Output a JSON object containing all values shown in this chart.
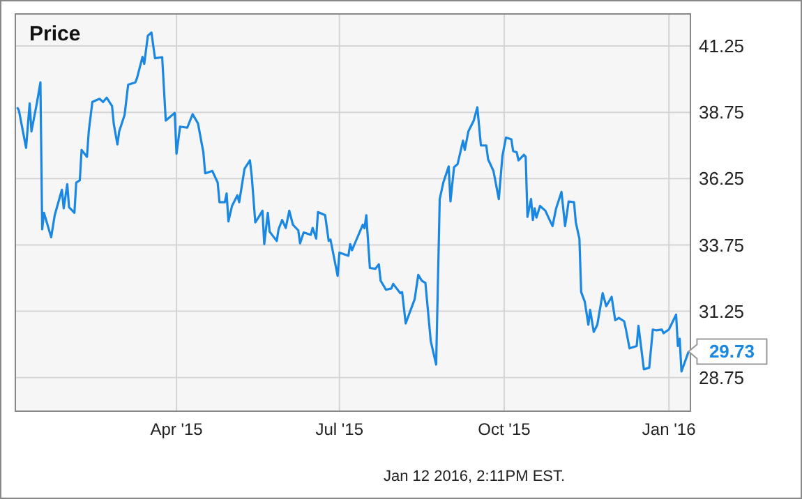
{
  "chart_data": {
    "type": "line",
    "title": "Price",
    "x": [
      "2015-01-02",
      "2015-01-03",
      "2015-01-07",
      "2015-01-09",
      "2015-01-10",
      "2015-01-13",
      "2015-01-15",
      "2015-01-16",
      "2015-01-17",
      "2015-01-21",
      "2015-01-23",
      "2015-01-27",
      "2015-01-28",
      "2015-01-30",
      "2015-01-31",
      "2015-02-03",
      "2015-02-04",
      "2015-02-06",
      "2015-02-07",
      "2015-02-10",
      "2015-02-11",
      "2015-02-13",
      "2015-02-17",
      "2015-02-19",
      "2015-02-21",
      "2015-02-24",
      "2015-02-25",
      "2015-02-27",
      "2015-02-28",
      "2015-03-03",
      "2015-03-05",
      "2015-03-09",
      "2015-03-10",
      "2015-03-13",
      "2015-03-14",
      "2015-03-16",
      "2015-03-18",
      "2015-03-20",
      "2015-03-24",
      "2015-03-26",
      "2015-03-31",
      "2015-04-01",
      "2015-04-03",
      "2015-04-07",
      "2015-04-10",
      "2015-04-13",
      "2015-04-16",
      "2015-04-17",
      "2015-04-21",
      "2015-04-24",
      "2015-04-25",
      "2015-04-28",
      "2015-04-29",
      "2015-04-30",
      "2015-05-02",
      "2015-05-05",
      "2015-05-06",
      "2015-05-09",
      "2015-05-12",
      "2015-05-13",
      "2015-05-15",
      "2015-05-17",
      "2015-05-19",
      "2015-05-20",
      "2015-05-22",
      "2015-05-23",
      "2015-05-27",
      "2015-05-28",
      "2015-05-30",
      "2015-06-01",
      "2015-06-03",
      "2015-06-05",
      "2015-06-08",
      "2015-06-09",
      "2015-06-11",
      "2015-06-15",
      "2015-06-16",
      "2015-06-18",
      "2015-06-19",
      "2015-06-23",
      "2015-06-25",
      "2015-06-26",
      "2015-06-30",
      "2015-07-01",
      "2015-07-06",
      "2015-07-07",
      "2015-07-08",
      "2015-07-14",
      "2015-07-15",
      "2015-07-16",
      "2015-07-18",
      "2015-07-21",
      "2015-07-23",
      "2015-07-24",
      "2015-07-27",
      "2015-07-30",
      "2015-07-31",
      "2015-08-04",
      "2015-08-05",
      "2015-08-07",
      "2015-08-12",
      "2015-08-14",
      "2015-08-16",
      "2015-08-18",
      "2015-08-21",
      "2015-08-24",
      "2015-08-26",
      "2015-08-28",
      "2015-08-31",
      "2015-09-01",
      "2015-09-03",
      "2015-09-05",
      "2015-09-08",
      "2015-09-09",
      "2015-09-11",
      "2015-09-14",
      "2015-09-16",
      "2015-09-18",
      "2015-09-21",
      "2015-09-22",
      "2015-09-25",
      "2015-09-28",
      "2015-09-30",
      "2015-10-02",
      "2015-10-05",
      "2015-10-06",
      "2015-10-08",
      "2015-10-09",
      "2015-10-12",
      "2015-10-13",
      "2015-10-14",
      "2015-10-16",
      "2015-10-17",
      "2015-10-18",
      "2015-10-19",
      "2015-10-21",
      "2015-10-24",
      "2015-10-27",
      "2015-10-28",
      "2015-10-30",
      "2015-11-02",
      "2015-11-04",
      "2015-11-06",
      "2015-11-09",
      "2015-11-10",
      "2015-11-12",
      "2015-11-13",
      "2015-11-15",
      "2015-11-17",
      "2015-11-18",
      "2015-11-20",
      "2015-11-22",
      "2015-11-25",
      "2015-11-27",
      "2015-11-30",
      "2015-12-02",
      "2015-12-04",
      "2015-12-07",
      "2015-12-08",
      "2015-12-10",
      "2015-12-14",
      "2015-12-15",
      "2015-12-18",
      "2015-12-21",
      "2015-12-23",
      "2015-12-25",
      "2015-12-28",
      "2015-12-29",
      "2016-01-01",
      "2016-01-05",
      "2016-01-06",
      "2016-01-07",
      "2016-01-08",
      "2016-01-12"
    ],
    "series": [
      {
        "color": "#1a87e2",
        "values": [
          38.94,
          38.82,
          37.41,
          39.09,
          38.03,
          39.09,
          39.88,
          34.34,
          34.96,
          34.04,
          34.87,
          35.83,
          35.13,
          36.04,
          35.17,
          34.96,
          36.1,
          36.19,
          37.33,
          37.07,
          38.03,
          39.14,
          39.26,
          39.14,
          39.3,
          38.99,
          38.3,
          37.54,
          38.03,
          38.65,
          39.79,
          39.88,
          40.05,
          40.84,
          40.58,
          41.64,
          41.76,
          40.79,
          40.83,
          38.44,
          38.73,
          37.19,
          38.21,
          38.17,
          38.68,
          38.33,
          37.24,
          36.45,
          36.54,
          36.1,
          35.36,
          35.36,
          35.69,
          34.64,
          35.22,
          35.62,
          35.36,
          36.62,
          36.94,
          36.36,
          34.6,
          34.81,
          35.04,
          33.78,
          34.96,
          34.25,
          33.9,
          34.34,
          34.69,
          34.39,
          35.04,
          34.51,
          34.3,
          33.81,
          34.22,
          34.13,
          34.39,
          33.99,
          34.99,
          34.87,
          33.9,
          33.95,
          32.58,
          33.46,
          33.34,
          33.78,
          33.55,
          34.51,
          34.38,
          34.87,
          32.88,
          32.85,
          33.02,
          32.4,
          32.06,
          32.11,
          32.28,
          31.93,
          31.97,
          30.79,
          31.7,
          32.62,
          32.4,
          32.32,
          30.12,
          29.24,
          35.48,
          36.1,
          36.71,
          35.39,
          36.68,
          36.8,
          37.68,
          37.33,
          38.03,
          38.44,
          38.94,
          37.5,
          37.5,
          36.98,
          36.54,
          35.48,
          37.1,
          37.8,
          37.73,
          37.29,
          37.24,
          36.94,
          37.15,
          37.07,
          34.81,
          35.48,
          34.69,
          35.13,
          34.78,
          35.22,
          35.04,
          34.6,
          34.46,
          35.13,
          35.75,
          34.46,
          35.39,
          35.36,
          34.6,
          33.99,
          31.97,
          31.61,
          30.74,
          31.3,
          30.47,
          30.74,
          31.93,
          31.44,
          31.79,
          30.91,
          31.0,
          30.87,
          30.56,
          29.85,
          29.94,
          30.7,
          29.06,
          29.12,
          30.56,
          30.53,
          30.56,
          30.42,
          30.56,
          31.12,
          29.94,
          30.21,
          28.98,
          29.73
        ]
      }
    ],
    "xlim": [
      "2015-01-01",
      "2016-01-13"
    ],
    "xticks": [
      {
        "value": "2015-04-01",
        "label": "Apr '15"
      },
      {
        "value": "2015-07-01",
        "label": "Jul '15"
      },
      {
        "value": "2015-10-01",
        "label": "Oct '15"
      },
      {
        "value": "2016-01-01",
        "label": "Jan '16"
      }
    ],
    "ylim": [
      27.48,
      42.46
    ],
    "yticks": [
      28.75,
      31.25,
      33.75,
      36.25,
      38.75,
      41.25
    ],
    "grid": true,
    "line_style": "solid",
    "marker": "none",
    "annotations": [
      {
        "text": "29.73",
        "x": "2016-01-12",
        "y": 29.73
      },
      "Jan 12 2016, 2:11PM EST."
    ]
  }
}
